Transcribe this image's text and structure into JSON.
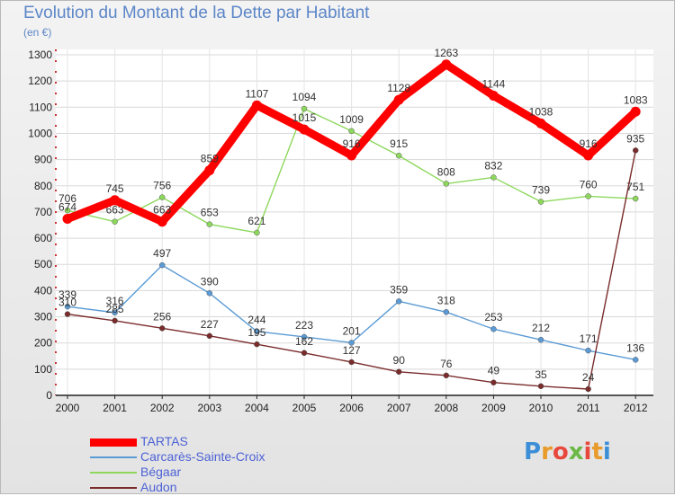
{
  "title": "Evolution du Montant de la Dette par Habitant",
  "unit": "(en €)",
  "logo": {
    "text": "Proxiti",
    "colors": [
      "#3c8fd6",
      "#e89a2a",
      "#e8483c",
      "#6bb845"
    ]
  },
  "chart_data": {
    "type": "line",
    "title": "Evolution du Montant de la Dette par Habitant",
    "ylabel": "(en €)",
    "xlabel": "",
    "ylim": [
      0,
      1300
    ],
    "yticks": [
      0,
      100,
      200,
      300,
      400,
      500,
      600,
      700,
      800,
      900,
      1000,
      1100,
      1200,
      1300
    ],
    "x": [
      "2000",
      "2001",
      "2002",
      "2003",
      "2004",
      "2005",
      "2006",
      "2007",
      "2008",
      "2009",
      "2010",
      "2011",
      "2012"
    ],
    "grid": true,
    "legend_position": "bottom-left",
    "series": [
      {
        "name": "TARTAS",
        "color": "#ff0000",
        "emphasis": true,
        "values": [
          674,
          745,
          663,
          859,
          1107,
          1015,
          916,
          1128,
          1263,
          1144,
          1038,
          916,
          1083
        ]
      },
      {
        "name": "Carcarès-Sainte-Croix",
        "color": "#5b9bd5",
        "values": [
          339,
          316,
          497,
          390,
          244,
          223,
          201,
          359,
          318,
          253,
          212,
          171,
          136
        ]
      },
      {
        "name": "Bégaar",
        "color": "#8dd85c",
        "values": [
          706,
          663,
          756,
          653,
          621,
          1094,
          1009,
          915,
          808,
          832,
          739,
          760,
          751
        ]
      },
      {
        "name": "Audon",
        "color": "#7a2b2b",
        "values": [
          310,
          285,
          256,
          227,
          195,
          162,
          127,
          90,
          76,
          49,
          35,
          24,
          935
        ]
      }
    ]
  }
}
